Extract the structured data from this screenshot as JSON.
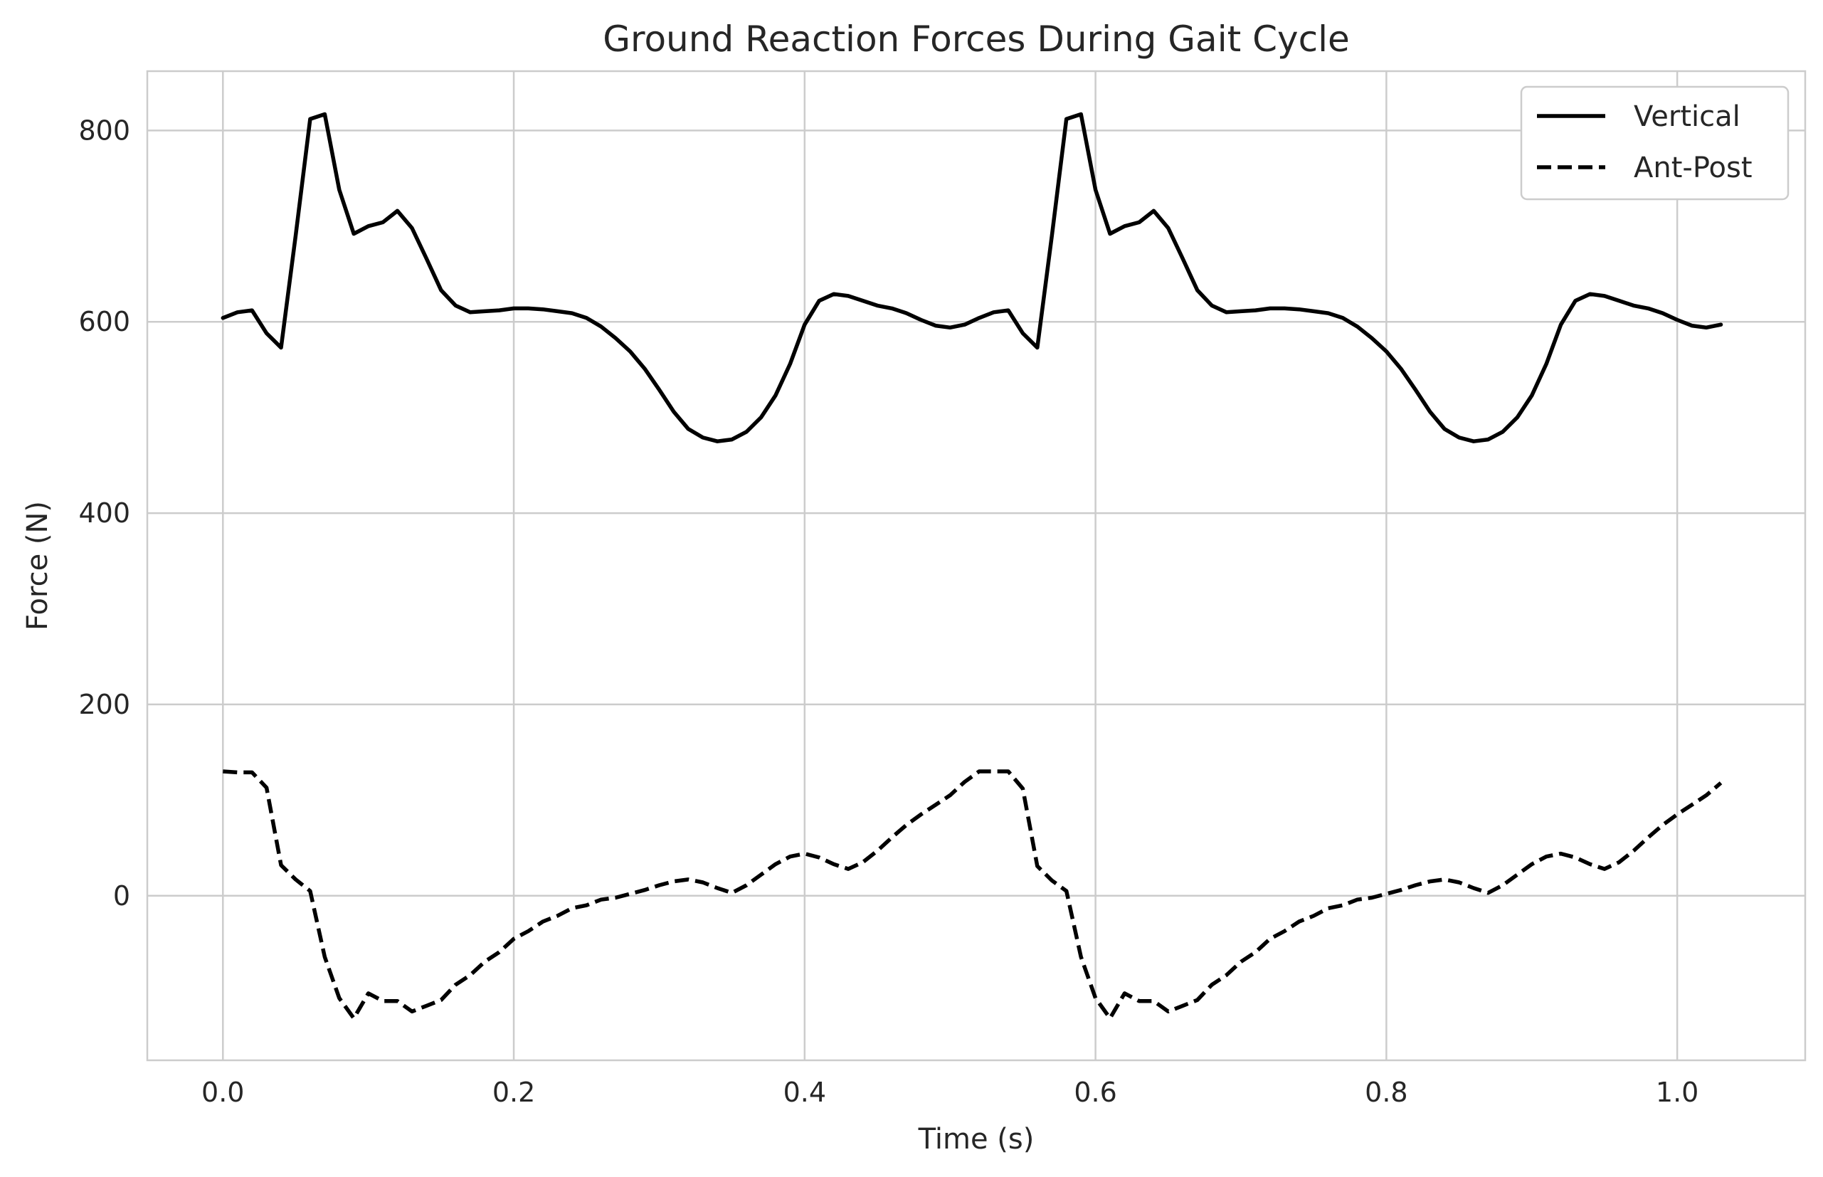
{
  "chart_data": {
    "type": "line",
    "title": "Ground Reaction Forces During Gait Cycle",
    "xlabel": "Time (s)",
    "ylabel": "Force (N)",
    "xlim": [
      -0.052,
      1.088
    ],
    "ylim": [
      -172,
      862
    ],
    "xticks": [
      0.0,
      0.2,
      0.4,
      0.6,
      0.8,
      1.0
    ],
    "xtick_labels": [
      "0.0",
      "0.2",
      "0.4",
      "0.6",
      "0.8",
      "1.0"
    ],
    "yticks": [
      0,
      200,
      400,
      600,
      800
    ],
    "ytick_labels": [
      "0",
      "200",
      "400",
      "600",
      "800"
    ],
    "grid": true,
    "legend_position": "top-right",
    "x": [
      0.0,
      0.01,
      0.02,
      0.03,
      0.04,
      0.05,
      0.06,
      0.07,
      0.08,
      0.09,
      0.1,
      0.11,
      0.12,
      0.13,
      0.14,
      0.15,
      0.16,
      0.17,
      0.18,
      0.19,
      0.2,
      0.21,
      0.22,
      0.23,
      0.24,
      0.25,
      0.26,
      0.27,
      0.28,
      0.29,
      0.3,
      0.31,
      0.32,
      0.33,
      0.34,
      0.35,
      0.36,
      0.37,
      0.38,
      0.39,
      0.4,
      0.41,
      0.42,
      0.43,
      0.44,
      0.45,
      0.46,
      0.47,
      0.48,
      0.49,
      0.5,
      0.51,
      0.52,
      0.53,
      0.54,
      0.55,
      0.56,
      0.57,
      0.58,
      0.59,
      0.6,
      0.61,
      0.62,
      0.63,
      0.64,
      0.65,
      0.66,
      0.67,
      0.68,
      0.69,
      0.7,
      0.71,
      0.72,
      0.73,
      0.74,
      0.75,
      0.76,
      0.77,
      0.78,
      0.79,
      0.8,
      0.81,
      0.82,
      0.83,
      0.84,
      0.85,
      0.86,
      0.87,
      0.88,
      0.89,
      0.9,
      0.91,
      0.92,
      0.93,
      0.94,
      0.95,
      0.96,
      0.97,
      0.98,
      0.99,
      1.0,
      1.01,
      1.02,
      1.03
    ],
    "series": [
      {
        "name": "Vertical",
        "color": "#000000",
        "style": "solid",
        "values": [
          604,
          610,
          612,
          588,
          573,
          690,
          812,
          817,
          738,
          692,
          700,
          704,
          716,
          698,
          666,
          633,
          617,
          610,
          611,
          612,
          614,
          614,
          613,
          611,
          609,
          604,
          595,
          583,
          569,
          551,
          529,
          506,
          488,
          479,
          475,
          477,
          485,
          500,
          523,
          556,
          597,
          622,
          629,
          627,
          622,
          617,
          614,
          609,
          602,
          596,
          594,
          597,
          604,
          610,
          612,
          588,
          573,
          690,
          812,
          817,
          738,
          692,
          700,
          704,
          716,
          698,
          666,
          633,
          617,
          610,
          611,
          612,
          614,
          614,
          613,
          611,
          609,
          604,
          595,
          583,
          569,
          551,
          529,
          506,
          488,
          479,
          475,
          477,
          485,
          500,
          523,
          556,
          597,
          622,
          629,
          627,
          622,
          617,
          614,
          609,
          602,
          596,
          594,
          597
        ]
      },
      {
        "name": "Ant-Post",
        "color": "#000000",
        "style": "dashed",
        "values": [
          130,
          129,
          129,
          113,
          32,
          17,
          5,
          -64,
          -107,
          -128,
          -102,
          -110,
          -110,
          -121,
          -115,
          -109,
          -93,
          -83,
          -69,
          -59,
          -45,
          -37,
          -27,
          -21,
          -13,
          -10,
          -4,
          -2,
          2,
          6,
          11,
          15,
          17,
          14,
          8,
          3,
          11,
          22,
          33,
          41,
          44,
          40,
          33,
          28,
          35,
          47,
          61,
          74,
          85,
          95,
          105,
          119,
          130,
          130,
          130,
          112,
          31,
          16,
          5,
          -64,
          -107,
          -128,
          -102,
          -110,
          -110,
          -121,
          -115,
          -109,
          -93,
          -83,
          -69,
          -59,
          -45,
          -37,
          -27,
          -21,
          -13,
          -10,
          -4,
          -2,
          2,
          6,
          11,
          15,
          17,
          14,
          8,
          3,
          11,
          22,
          33,
          41,
          44,
          40,
          33,
          28,
          35,
          47,
          61,
          74,
          85,
          95,
          105,
          118
        ]
      }
    ]
  }
}
